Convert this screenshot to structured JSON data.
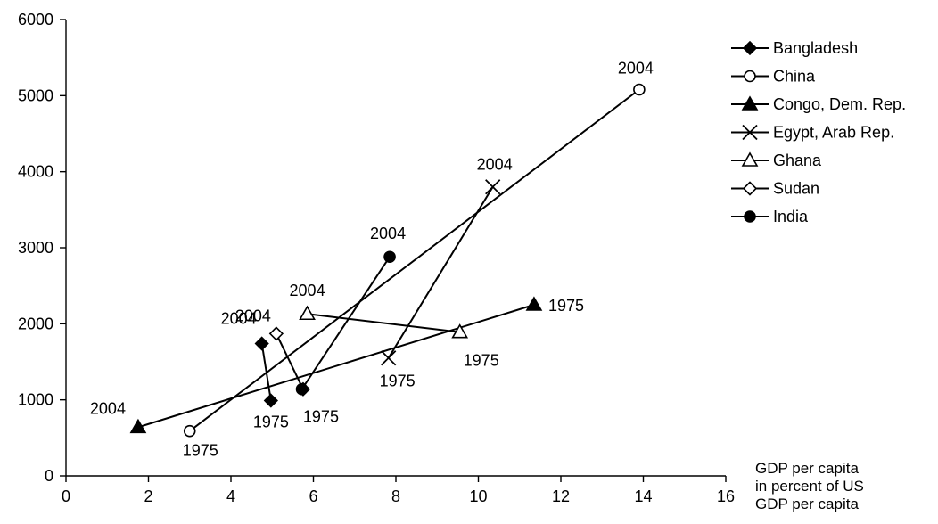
{
  "chart_data": {
    "type": "scatter",
    "title": "",
    "xlabel": "GDP per capita in percent of US GDP per capita",
    "xlabel_lines": [
      "GDP per capita",
      "in percent of US",
      "GDP per capita"
    ],
    "ylabel": "",
    "xlim": [
      0,
      16
    ],
    "ylim": [
      0,
      6000
    ],
    "xticks": [
      0,
      2,
      4,
      6,
      8,
      10,
      12,
      14,
      16
    ],
    "yticks": [
      0,
      1000,
      2000,
      3000,
      4000,
      5000,
      6000
    ],
    "grid": false,
    "legend_position": "top-right",
    "series": [
      {
        "name": "Bangladesh",
        "marker": "filled-diamond",
        "points": [
          {
            "x": 4.97,
            "y": 990,
            "label": "1975"
          },
          {
            "x": 4.75,
            "y": 1740,
            "label": "2004"
          }
        ]
      },
      {
        "name": "China",
        "marker": "open-circle",
        "points": [
          {
            "x": 3.0,
            "y": 590,
            "label": "1975"
          },
          {
            "x": 13.9,
            "y": 5080,
            "label": "2004"
          }
        ]
      },
      {
        "name": "Congo, Dem. Rep.",
        "marker": "filled-triangle",
        "points": [
          {
            "x": 11.35,
            "y": 2250,
            "label": "1975"
          },
          {
            "x": 1.75,
            "y": 640,
            "label": "2004"
          }
        ]
      },
      {
        "name": "Egypt, Arab Rep.",
        "marker": "x",
        "points": [
          {
            "x": 7.82,
            "y": 1550,
            "label": "1975"
          },
          {
            "x": 10.35,
            "y": 3800,
            "label": "2004"
          }
        ]
      },
      {
        "name": "Ghana",
        "marker": "open-triangle",
        "points": [
          {
            "x": 9.55,
            "y": 1890,
            "label": "1975"
          },
          {
            "x": 5.85,
            "y": 2130,
            "label": "2004"
          }
        ]
      },
      {
        "name": "Sudan",
        "marker": "open-diamond",
        "points": [
          {
            "x": 5.75,
            "y": 1140,
            "label": "1975"
          },
          {
            "x": 5.1,
            "y": 1870,
            "label": "2004"
          }
        ]
      },
      {
        "name": "India",
        "marker": "filled-circle",
        "points": [
          {
            "x": 5.72,
            "y": 1140,
            "label": "1975"
          },
          {
            "x": 7.85,
            "y": 2880,
            "label": "2004"
          }
        ]
      }
    ]
  }
}
